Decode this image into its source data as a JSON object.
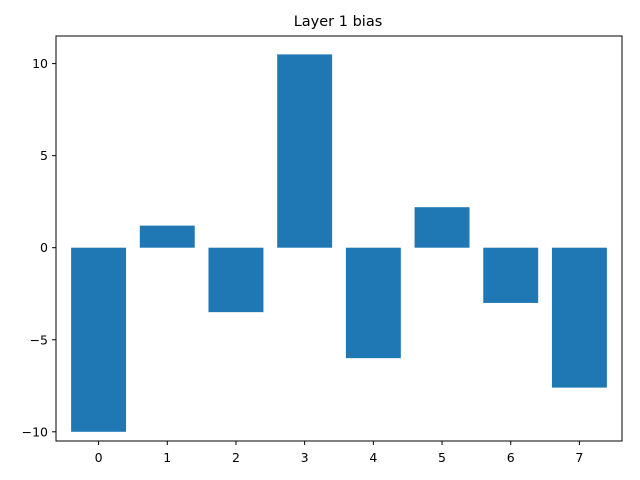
{
  "chart_data": {
    "type": "bar",
    "title": "Layer 1 bias",
    "xlabel": "",
    "ylabel": "",
    "categories": [
      "0",
      "1",
      "2",
      "3",
      "4",
      "5",
      "6",
      "7"
    ],
    "values": [
      -10.0,
      1.2,
      -3.5,
      10.5,
      -6.0,
      2.2,
      -3.0,
      -7.6
    ],
    "ylim": [
      -10.5,
      11.5
    ],
    "yticks": [
      -10,
      -5,
      0,
      5,
      10
    ],
    "bar_color": "#1f77b4",
    "grid": false,
    "legend": "none"
  }
}
